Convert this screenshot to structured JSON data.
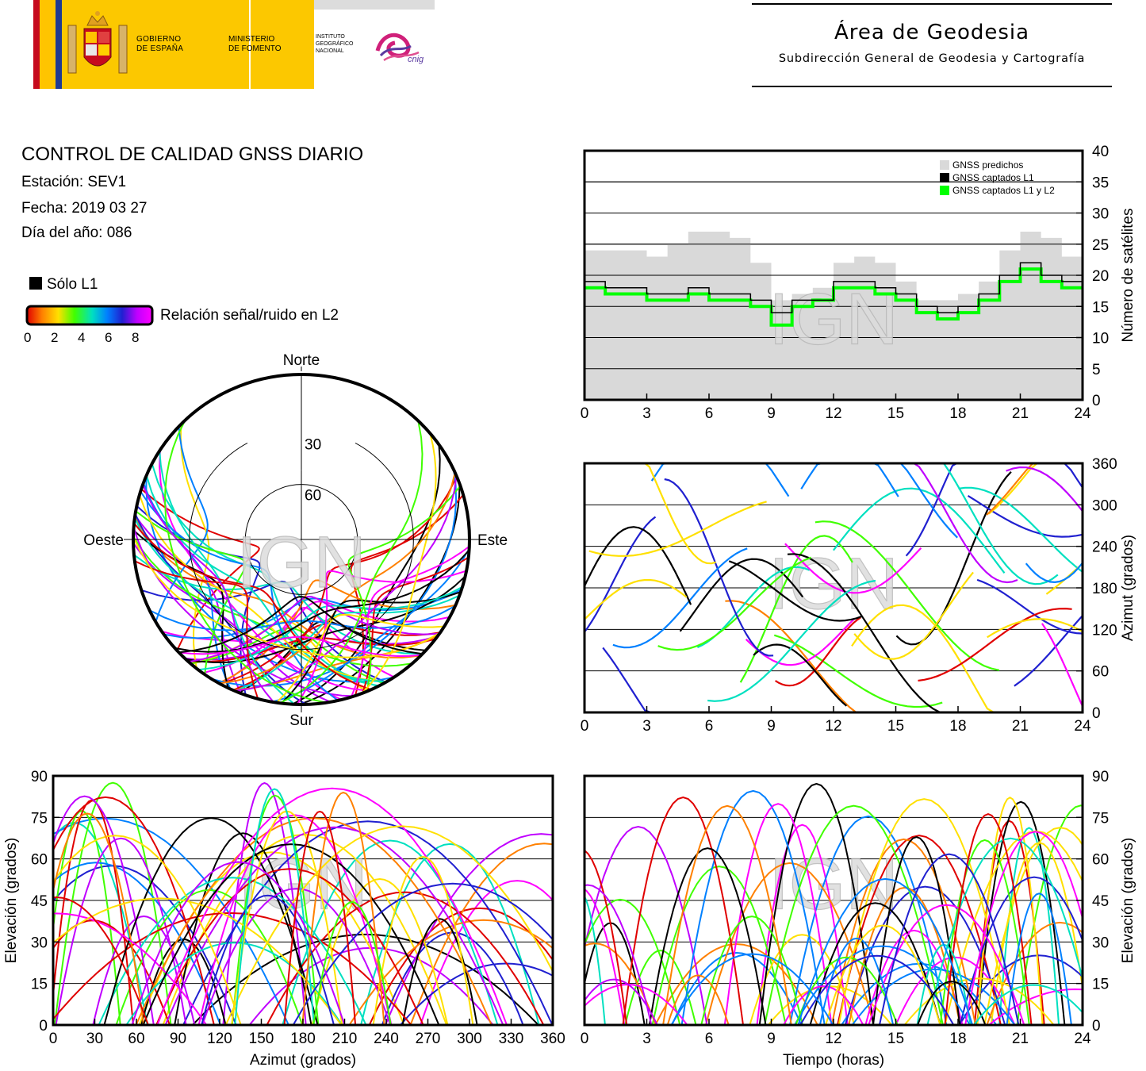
{
  "header": {
    "gobierno": [
      "GOBIERNO",
      "DE ESPAÑA"
    ],
    "ministerio": [
      "MINISTERIO",
      "DE FOMENTO"
    ],
    "instituto": [
      "INSTITUTO",
      "GEOGRÁFICO",
      "NACIONAL"
    ],
    "cnig": "cnig",
    "area_title": "Área de Geodesia",
    "area_subtitle": "Subdirección General de Geodesia y Cartografía"
  },
  "report": {
    "title": "CONTROL DE CALIDAD GNSS DIARIO",
    "station": "Estación: SEV1",
    "date": "Fecha: 2019 03 27",
    "doy": "Día del año: 086",
    "legend_l1": "Sólo L1",
    "legend_snr": "Relación señal/ruido en L2",
    "snr_ticks": [
      "0",
      "2",
      "4",
      "6",
      "8"
    ],
    "watermark": "IGN"
  },
  "colors": {
    "snr_scale": [
      "#e00000",
      "#ff8000",
      "#ffe000",
      "#40ff00",
      "#00e0c0",
      "#0080ff",
      "#2020d0",
      "#c000ff",
      "#ff00ff"
    ],
    "l1_only": "#000000",
    "predicted": "#d9d9d9",
    "captured_l1l2": "#00ff00",
    "grid": "#000000"
  },
  "chart_data": [
    {
      "type": "area",
      "id": "satellite-count",
      "legend": [
        "GNSS predichos",
        "GNSS captados L1",
        "GNSS captados L1 y L2"
      ],
      "legend_position": "top-right",
      "ylabel": "Número de satélites",
      "xlim": [
        0,
        24
      ],
      "ylim": [
        0,
        40
      ],
      "xticks": [
        0,
        3,
        6,
        9,
        12,
        15,
        18,
        21,
        24
      ],
      "yticks": [
        0,
        5,
        10,
        15,
        20,
        25,
        30,
        35,
        40
      ],
      "grid": "horizontal",
      "x": [
        0,
        1,
        2,
        3,
        4,
        5,
        6,
        7,
        8,
        9,
        10,
        11,
        12,
        13,
        14,
        15,
        16,
        17,
        18,
        19,
        20,
        21,
        22,
        23,
        24
      ],
      "series": [
        {
          "name": "GNSS predichos",
          "values": [
            24,
            24,
            24,
            23,
            25,
            27,
            27,
            26,
            22,
            16,
            17,
            18,
            22,
            23,
            22,
            19,
            16,
            16,
            17,
            19,
            24,
            27,
            26,
            23,
            23
          ]
        },
        {
          "name": "GNSS captados L1",
          "values": [
            19,
            18,
            18,
            17,
            17,
            18,
            17,
            17,
            16,
            14,
            16,
            16,
            19,
            19,
            18,
            17,
            15,
            14,
            15,
            17,
            20,
            22,
            20,
            19,
            19
          ]
        },
        {
          "name": "GNSS captados L1 y L2",
          "values": [
            18,
            17,
            17,
            16,
            16,
            17,
            16,
            16,
            15,
            12,
            15,
            16,
            18,
            18,
            17,
            16,
            14,
            13,
            14,
            16,
            19,
            21,
            19,
            18,
            18
          ]
        }
      ]
    },
    {
      "type": "scatter",
      "id": "azimuth-vs-time",
      "ylabel": "Azimut (grados)",
      "xlim": [
        0,
        24
      ],
      "ylim": [
        0,
        360
      ],
      "xticks": [
        0,
        3,
        6,
        9,
        12,
        15,
        18,
        21,
        24
      ],
      "yticks": [
        0,
        60,
        120,
        180,
        240,
        300,
        360
      ],
      "grid": "horizontal",
      "color_encoding": "snr_l2"
    },
    {
      "type": "scatter",
      "id": "elevation-vs-azimuth",
      "xlabel": "Azimut (grados)",
      "ylabel": "Elevación (grados)",
      "xlim": [
        0,
        360
      ],
      "ylim": [
        0,
        90
      ],
      "xticks": [
        0,
        30,
        60,
        90,
        120,
        150,
        180,
        210,
        240,
        270,
        300,
        330,
        360
      ],
      "yticks": [
        0,
        15,
        30,
        45,
        60,
        75,
        90
      ],
      "grid": "horizontal",
      "color_encoding": "snr_l2"
    },
    {
      "type": "scatter",
      "id": "elevation-vs-time",
      "xlabel": "Tiempo (horas)",
      "ylabel": "Elevación (grados)",
      "xlim": [
        0,
        24
      ],
      "ylim": [
        0,
        90
      ],
      "xticks": [
        0,
        3,
        6,
        9,
        12,
        15,
        18,
        21,
        24
      ],
      "yticks": [
        0,
        15,
        30,
        45,
        60,
        75,
        90
      ],
      "grid": "horizontal",
      "color_encoding": "snr_l2"
    },
    {
      "type": "scatter",
      "id": "skyplot",
      "projection": "polar",
      "labels": {
        "north": "Norte",
        "south": "Sur",
        "east": "Este",
        "west": "Oeste"
      },
      "rings": [
        "30",
        "60"
      ],
      "color_encoding": "snr_l2"
    }
  ]
}
